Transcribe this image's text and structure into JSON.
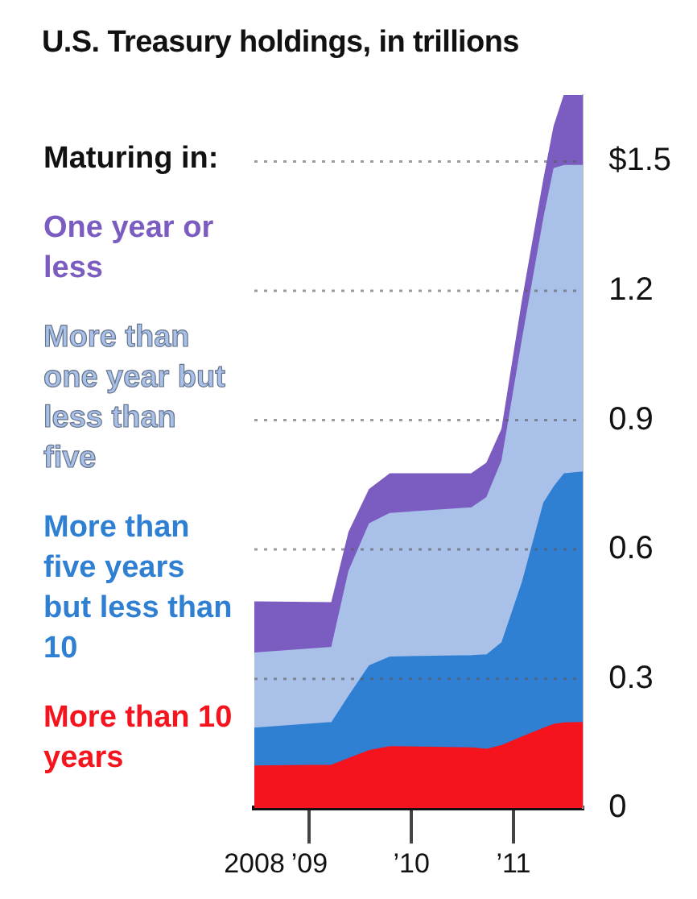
{
  "chart_data": {
    "type": "area",
    "title": "U.S. Treasury holdings, in trillions",
    "legend_title": "Maturing in:",
    "x": [
      2008.46,
      2009.22,
      2009.39,
      2009.59,
      2009.79,
      2010.59,
      2010.74,
      2010.89,
      2011.09,
      2011.3,
      2011.4,
      2011.5,
      2011.68
    ],
    "xlim": [
      2008.46,
      2011.68
    ],
    "xticks": [
      {
        "value": 2008.46,
        "label": "2008"
      },
      {
        "value": 2009,
        "label": "’09"
      },
      {
        "value": 2010,
        "label": "’10"
      },
      {
        "value": 2011,
        "label": "’11"
      }
    ],
    "stacked": true,
    "series": [
      {
        "name": "More than 10 years",
        "color": "#f5141e",
        "values": [
          0.097,
          0.099,
          0.115,
          0.133,
          0.142,
          0.139,
          0.136,
          0.145,
          0.165,
          0.185,
          0.194,
          0.197,
          0.198
        ]
      },
      {
        "name": "More than five years but less than 10",
        "color": "#2f7fd3",
        "values": [
          0.088,
          0.099,
          0.145,
          0.197,
          0.208,
          0.214,
          0.219,
          0.239,
          0.359,
          0.523,
          0.551,
          0.578,
          0.581
        ]
      },
      {
        "name": "More than one year but less than five",
        "color": "#a9c1e8",
        "values": [
          0.174,
          0.174,
          0.29,
          0.329,
          0.333,
          0.343,
          0.365,
          0.422,
          0.563,
          0.66,
          0.738,
          0.715,
          0.711
        ]
      },
      {
        "name": "One year or less",
        "color": "#7b5cc0",
        "values": [
          0.119,
          0.104,
          0.09,
          0.08,
          0.092,
          0.079,
          0.08,
          0.073,
          0.09,
          0.09,
          0.098,
          0.164,
          0.164
        ]
      }
    ],
    "ylim": [
      0,
      1.654
    ],
    "yticks": [
      0,
      0.3,
      0.6,
      0.9,
      1.2,
      {
        "value": 1.5,
        "label": "$1.5"
      }
    ],
    "grid": "y",
    "legend": "left"
  }
}
